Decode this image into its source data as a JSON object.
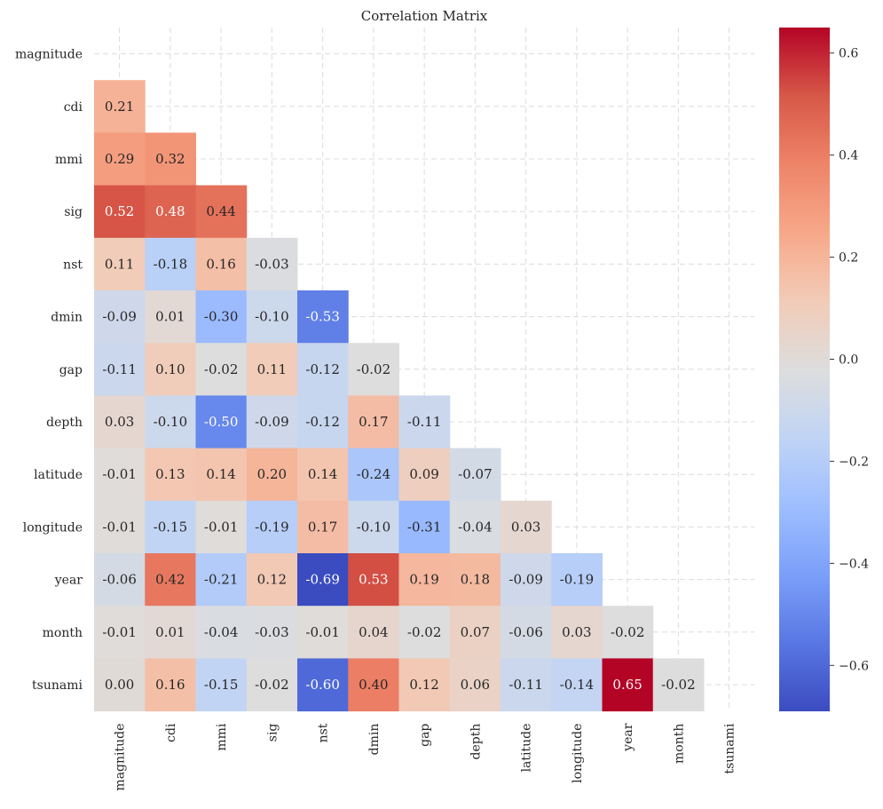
{
  "chart_data": {
    "type": "heatmap",
    "title": "Correlation Matrix",
    "labels": [
      "magnitude",
      "cdi",
      "mmi",
      "sig",
      "nst",
      "dmin",
      "gap",
      "depth",
      "latitude",
      "longitude",
      "year",
      "month",
      "tsunami"
    ],
    "lower_triangle": [
      [],
      [
        0.21
      ],
      [
        0.29,
        0.32
      ],
      [
        0.52,
        0.48,
        0.44
      ],
      [
        0.11,
        -0.18,
        0.16,
        -0.03
      ],
      [
        -0.09,
        0.01,
        -0.3,
        -0.1,
        -0.53
      ],
      [
        -0.11,
        0.1,
        -0.02,
        0.11,
        -0.12,
        -0.02
      ],
      [
        0.03,
        -0.1,
        -0.5,
        -0.09,
        -0.12,
        0.17,
        -0.11
      ],
      [
        -0.01,
        0.13,
        0.14,
        0.2,
        0.14,
        -0.24,
        0.09,
        -0.07
      ],
      [
        -0.01,
        -0.15,
        -0.01,
        -0.19,
        0.17,
        -0.1,
        -0.31,
        -0.04,
        0.03
      ],
      [
        -0.06,
        0.42,
        -0.21,
        0.12,
        -0.69,
        0.53,
        0.19,
        0.18,
        -0.09,
        -0.19
      ],
      [
        -0.01,
        0.01,
        -0.04,
        -0.03,
        -0.01,
        0.04,
        -0.02,
        0.07,
        -0.06,
        0.03,
        -0.02
      ],
      [
        -0.0,
        0.16,
        -0.15,
        -0.02,
        -0.6,
        0.4,
        0.12,
        0.06,
        -0.11,
        -0.14,
        0.65,
        -0.02
      ]
    ],
    "colormap": "coolwarm",
    "vmin": -0.69,
    "vmax": 0.65,
    "colorbar_ticks": [
      "-0.6",
      "-0.4",
      "-0.2",
      "0.0",
      "0.2",
      "0.4",
      "0.6"
    ],
    "grid": true
  }
}
